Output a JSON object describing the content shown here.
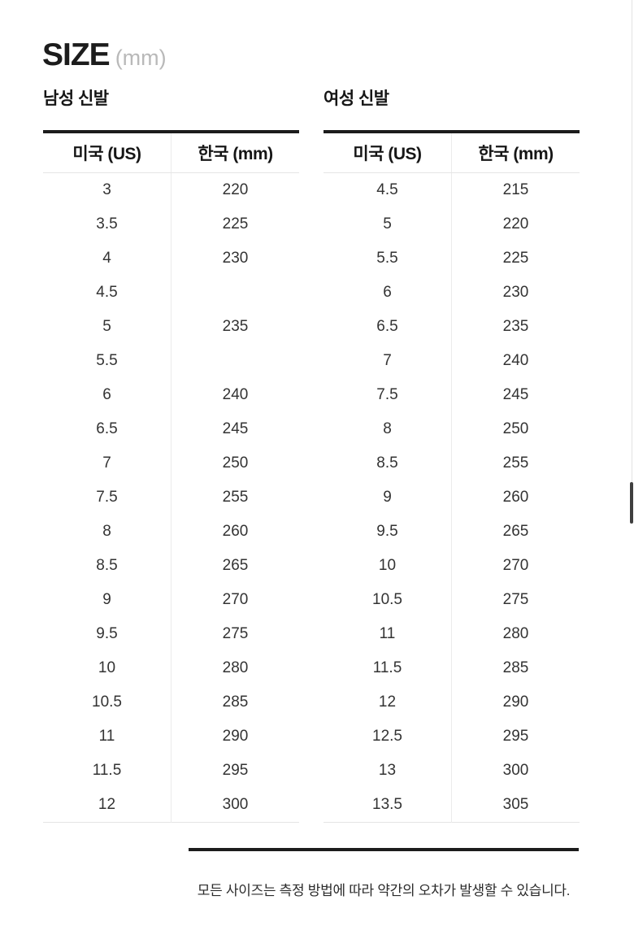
{
  "header": {
    "title": "SIZE",
    "unit": "(mm)"
  },
  "tables": [
    {
      "title": "남성 신발",
      "columns": [
        "미국 (US)",
        "한국 (mm)"
      ],
      "rows": [
        [
          "3",
          "220"
        ],
        [
          "3.5",
          "225"
        ],
        [
          "4",
          "230"
        ],
        [
          "4.5",
          ""
        ],
        [
          "5",
          "235"
        ],
        [
          "5.5",
          ""
        ],
        [
          "6",
          "240"
        ],
        [
          "6.5",
          "245"
        ],
        [
          "7",
          "250"
        ],
        [
          "7.5",
          "255"
        ],
        [
          "8",
          "260"
        ],
        [
          "8.5",
          "265"
        ],
        [
          "9",
          "270"
        ],
        [
          "9.5",
          "275"
        ],
        [
          "10",
          "280"
        ],
        [
          "10.5",
          "285"
        ],
        [
          "11",
          "290"
        ],
        [
          "11.5",
          "295"
        ],
        [
          "12",
          "300"
        ]
      ]
    },
    {
      "title": "여성 신발",
      "columns": [
        "미국 (US)",
        "한국 (mm)"
      ],
      "rows": [
        [
          "4.5",
          "215"
        ],
        [
          "5",
          "220"
        ],
        [
          "5.5",
          "225"
        ],
        [
          "6",
          "230"
        ],
        [
          "6.5",
          "235"
        ],
        [
          "7",
          "240"
        ],
        [
          "7.5",
          "245"
        ],
        [
          "8",
          "250"
        ],
        [
          "8.5",
          "255"
        ],
        [
          "9",
          "260"
        ],
        [
          "9.5",
          "265"
        ],
        [
          "10",
          "270"
        ],
        [
          "10.5",
          "275"
        ],
        [
          "11",
          "280"
        ],
        [
          "11.5",
          "285"
        ],
        [
          "12",
          "290"
        ],
        [
          "12.5",
          "295"
        ],
        [
          "13",
          "300"
        ],
        [
          "13.5",
          "305"
        ]
      ]
    }
  ],
  "footer": {
    "note": "모든 사이즈는 측정 방법에 따라 약간의 오차가 발생할 수 있습니다."
  },
  "colors": {
    "accent_dark": "#1c1c1c",
    "divider_light": "#e5e5e5",
    "unit_gray": "#b9b9b9",
    "cell_text": "#333333",
    "scrollbar_thumb": "#3f3f3f"
  }
}
